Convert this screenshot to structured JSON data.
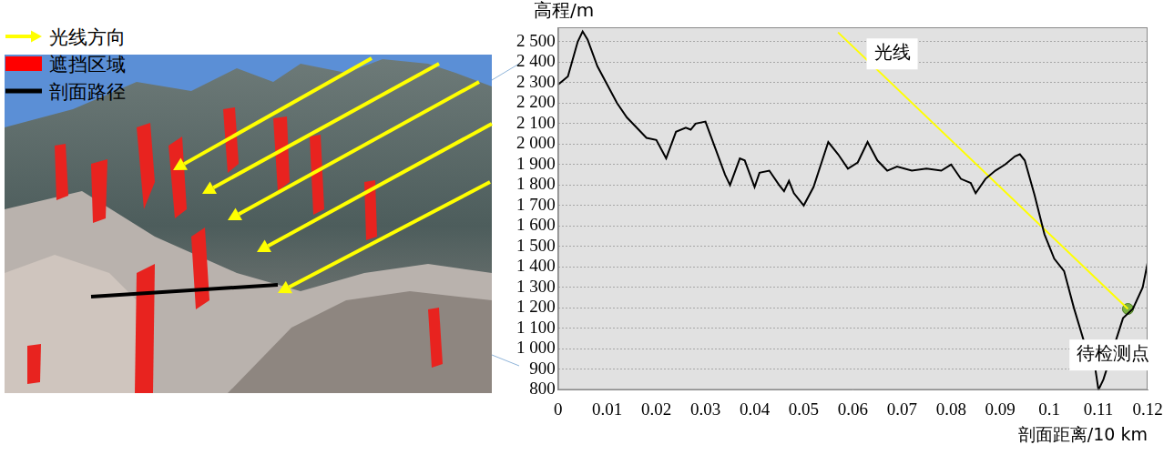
{
  "image_panel": {
    "legend": [
      {
        "label": "光线方向",
        "color": "#ffff00",
        "marker": "arrow"
      },
      {
        "label": "遮挡区域",
        "color": "#ff0000",
        "marker": "box"
      },
      {
        "label": "剖面路径",
        "color": "#000000",
        "marker": "line"
      }
    ]
  },
  "chart_data": {
    "type": "line",
    "y_label": "高程/m",
    "x_label": "剖面距离/10 km",
    "xlim": [
      0,
      0.12
    ],
    "ylim": [
      800,
      2570
    ],
    "xticks": [
      0,
      0.01,
      0.02,
      0.03,
      0.04,
      0.05,
      0.06,
      0.07,
      0.08,
      0.09,
      0.1,
      0.11,
      0.12
    ],
    "yticks": [
      800,
      900,
      {
        "value": 1000,
        "label": "1 000"
      },
      {
        "value": 1100,
        "label": "1 100"
      },
      {
        "value": 1200,
        "label": "1 200"
      },
      {
        "value": 1300,
        "label": "1 300"
      },
      {
        "value": 1400,
        "label": "1 400"
      },
      {
        "value": 1500,
        "label": "1 500"
      },
      {
        "value": 1600,
        "label": "1 600"
      },
      {
        "value": 1700,
        "label": "1 700"
      },
      {
        "value": 1800,
        "label": "1 800"
      },
      {
        "value": 1900,
        "label": "1 900"
      },
      {
        "value": 2000,
        "label": "2 000"
      },
      {
        "value": 2100,
        "label": "2 100"
      },
      {
        "value": 2200,
        "label": "2 200"
      },
      {
        "value": 2300,
        "label": "2 300"
      },
      {
        "value": 2400,
        "label": "2 400"
      },
      {
        "value": 2500,
        "label": "2 500"
      }
    ],
    "grid": true,
    "series": [
      {
        "type": "line",
        "color": "#000000",
        "x": [
          0,
          0.002,
          0.004,
          0.005,
          0.006,
          0.008,
          0.01,
          0.012,
          0.014,
          0.016,
          0.018,
          0.02,
          0.022,
          0.024,
          0.026,
          0.027,
          0.028,
          0.03,
          0.032,
          0.034,
          0.035,
          0.037,
          0.038,
          0.04,
          0.041,
          0.043,
          0.045,
          0.046,
          0.047,
          0.048,
          0.05,
          0.052,
          0.055,
          0.057,
          0.059,
          0.061,
          0.063,
          0.065,
          0.067,
          0.069,
          0.072,
          0.075,
          0.078,
          0.08,
          0.082,
          0.084,
          0.085,
          0.087,
          0.089,
          0.091,
          0.093,
          0.094,
          0.095,
          0.097,
          0.099,
          0.101,
          0.103,
          0.105,
          0.107,
          0.109,
          0.11,
          0.111,
          0.113,
          0.115,
          0.117,
          0.119,
          0.12
        ],
        "values": [
          2290,
          2330,
          2500,
          2550,
          2510,
          2380,
          2290,
          2200,
          2130,
          2080,
          2030,
          2020,
          1930,
          2060,
          2080,
          2070,
          2100,
          2110,
          1980,
          1850,
          1800,
          1930,
          1920,
          1790,
          1860,
          1870,
          1800,
          1770,
          1820,
          1760,
          1700,
          1790,
          2010,
          1950,
          1880,
          1910,
          2010,
          1920,
          1870,
          1890,
          1870,
          1880,
          1870,
          1900,
          1830,
          1810,
          1760,
          1830,
          1870,
          1900,
          1940,
          1950,
          1920,
          1750,
          1560,
          1440,
          1380,
          1200,
          1040,
          960,
          800,
          850,
          1000,
          1150,
          1195,
          1300,
          1420
        ]
      },
      {
        "type": "line",
        "color": "#ffff00",
        "x": [
          0.057,
          0.116
        ],
        "values": [
          2545,
          1195
        ]
      },
      {
        "type": "scatter",
        "color": "#7cb342",
        "marker": "circle",
        "x": [
          0.116
        ],
        "values": [
          1195
        ]
      }
    ],
    "annotations": [
      {
        "text": "光线",
        "x": 0.068,
        "y": 2440
      },
      {
        "text": "待检测点",
        "x": 0.113,
        "y": 970
      }
    ],
    "legend": false
  }
}
